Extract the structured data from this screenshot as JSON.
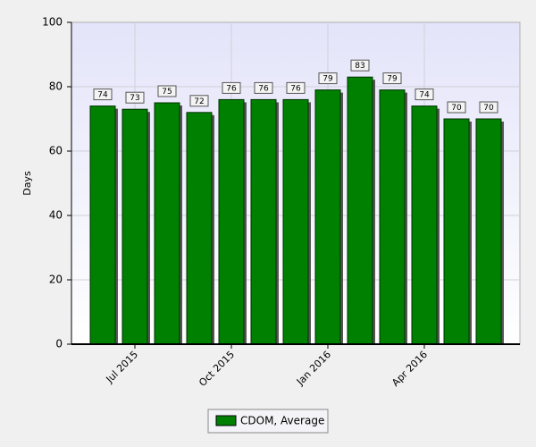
{
  "chart_data": {
    "type": "bar",
    "y_label": "Days",
    "categories": [
      null,
      "Jul 2015",
      null,
      null,
      "Oct 2015",
      null,
      null,
      "Jan 2016",
      null,
      null,
      "Apr 2016",
      null,
      null
    ],
    "series": [
      {
        "name": "CDOM, Average",
        "color": "#008000",
        "values": [
          74,
          73,
          75,
          72,
          76,
          76,
          76,
          79,
          83,
          79,
          74,
          70,
          70
        ]
      }
    ],
    "ylim": [
      0,
      100
    ],
    "yticks": [
      0,
      20,
      40,
      60,
      80,
      100
    ],
    "grid": true,
    "legend": "bottom"
  }
}
